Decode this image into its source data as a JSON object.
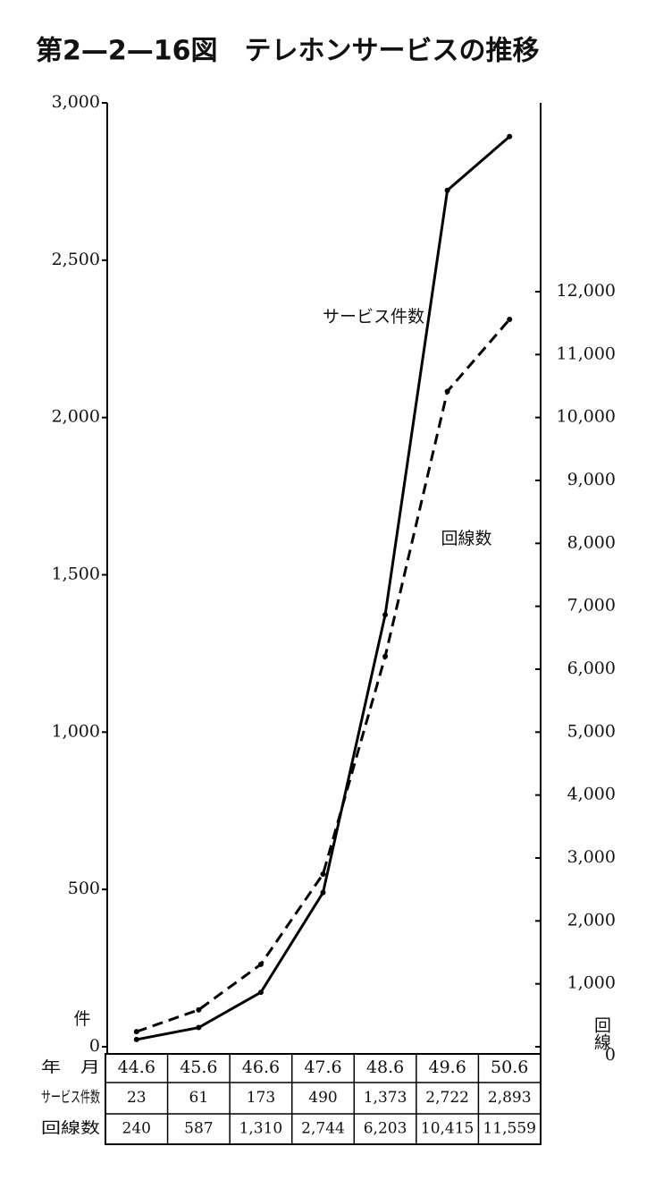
{
  "chart_data": {
    "type": "line",
    "title": "第2—2—16図　テレホンサービスの推移",
    "categories": [
      "44.6",
      "45.6",
      "46.6",
      "47.6",
      "48.6",
      "49.6",
      "50.6"
    ],
    "series": [
      {
        "name": "サービス件数",
        "color": "#000000",
        "line_style": "solid",
        "values": [
          23,
          61,
          173,
          490,
          1373,
          2722,
          2893
        ],
        "value_labels": [
          "23",
          "61",
          "173",
          "490",
          "1,373",
          "2,722",
          "2,893"
        ]
      },
      {
        "name": "回線数",
        "color": "#000000",
        "line_style": "dashed",
        "axis": "y2",
        "values": [
          240,
          587,
          1310,
          2744,
          6203,
          10415,
          11559
        ],
        "value_labels": [
          "240",
          "587",
          "1,310",
          "2,744",
          "6,203",
          "10,415",
          "11,559"
        ]
      }
    ],
    "ylim": [
      0,
      3000
    ],
    "yticks": [
      0,
      500,
      {
        "value": 1000,
        "label": "1,000"
      },
      {
        "value": 1500,
        "label": "1,500"
      },
      {
        "value": 2000,
        "label": "2,000"
      },
      {
        "value": 2500,
        "label": "2,500"
      },
      {
        "value": 3000,
        "label": "3,000"
      }
    ],
    "y2lim": [
      0,
      15000
    ],
    "y2ticks": [
      0,
      {
        "value": 1000,
        "label": "1,000"
      },
      {
        "value": 2000,
        "label": "2,000"
      },
      {
        "value": 3000,
        "label": "3,000"
      },
      {
        "value": 4000,
        "label": "4,000"
      },
      {
        "value": 5000,
        "label": "5,000"
      },
      {
        "value": 6000,
        "label": "6,000"
      },
      {
        "value": 7000,
        "label": "7,000"
      },
      {
        "value": 8000,
        "label": "8,000"
      },
      {
        "value": 9000,
        "label": "9,000"
      },
      {
        "value": 10000,
        "label": "10,000"
      },
      {
        "value": 11000,
        "label": "11,000"
      },
      {
        "value": 12000,
        "label": "12,000"
      }
    ],
    "ylabel": "件",
    "y2label": "回線",
    "table_row_labels": [
      "年　月",
      "サービス件数",
      "回線数"
    ]
  }
}
